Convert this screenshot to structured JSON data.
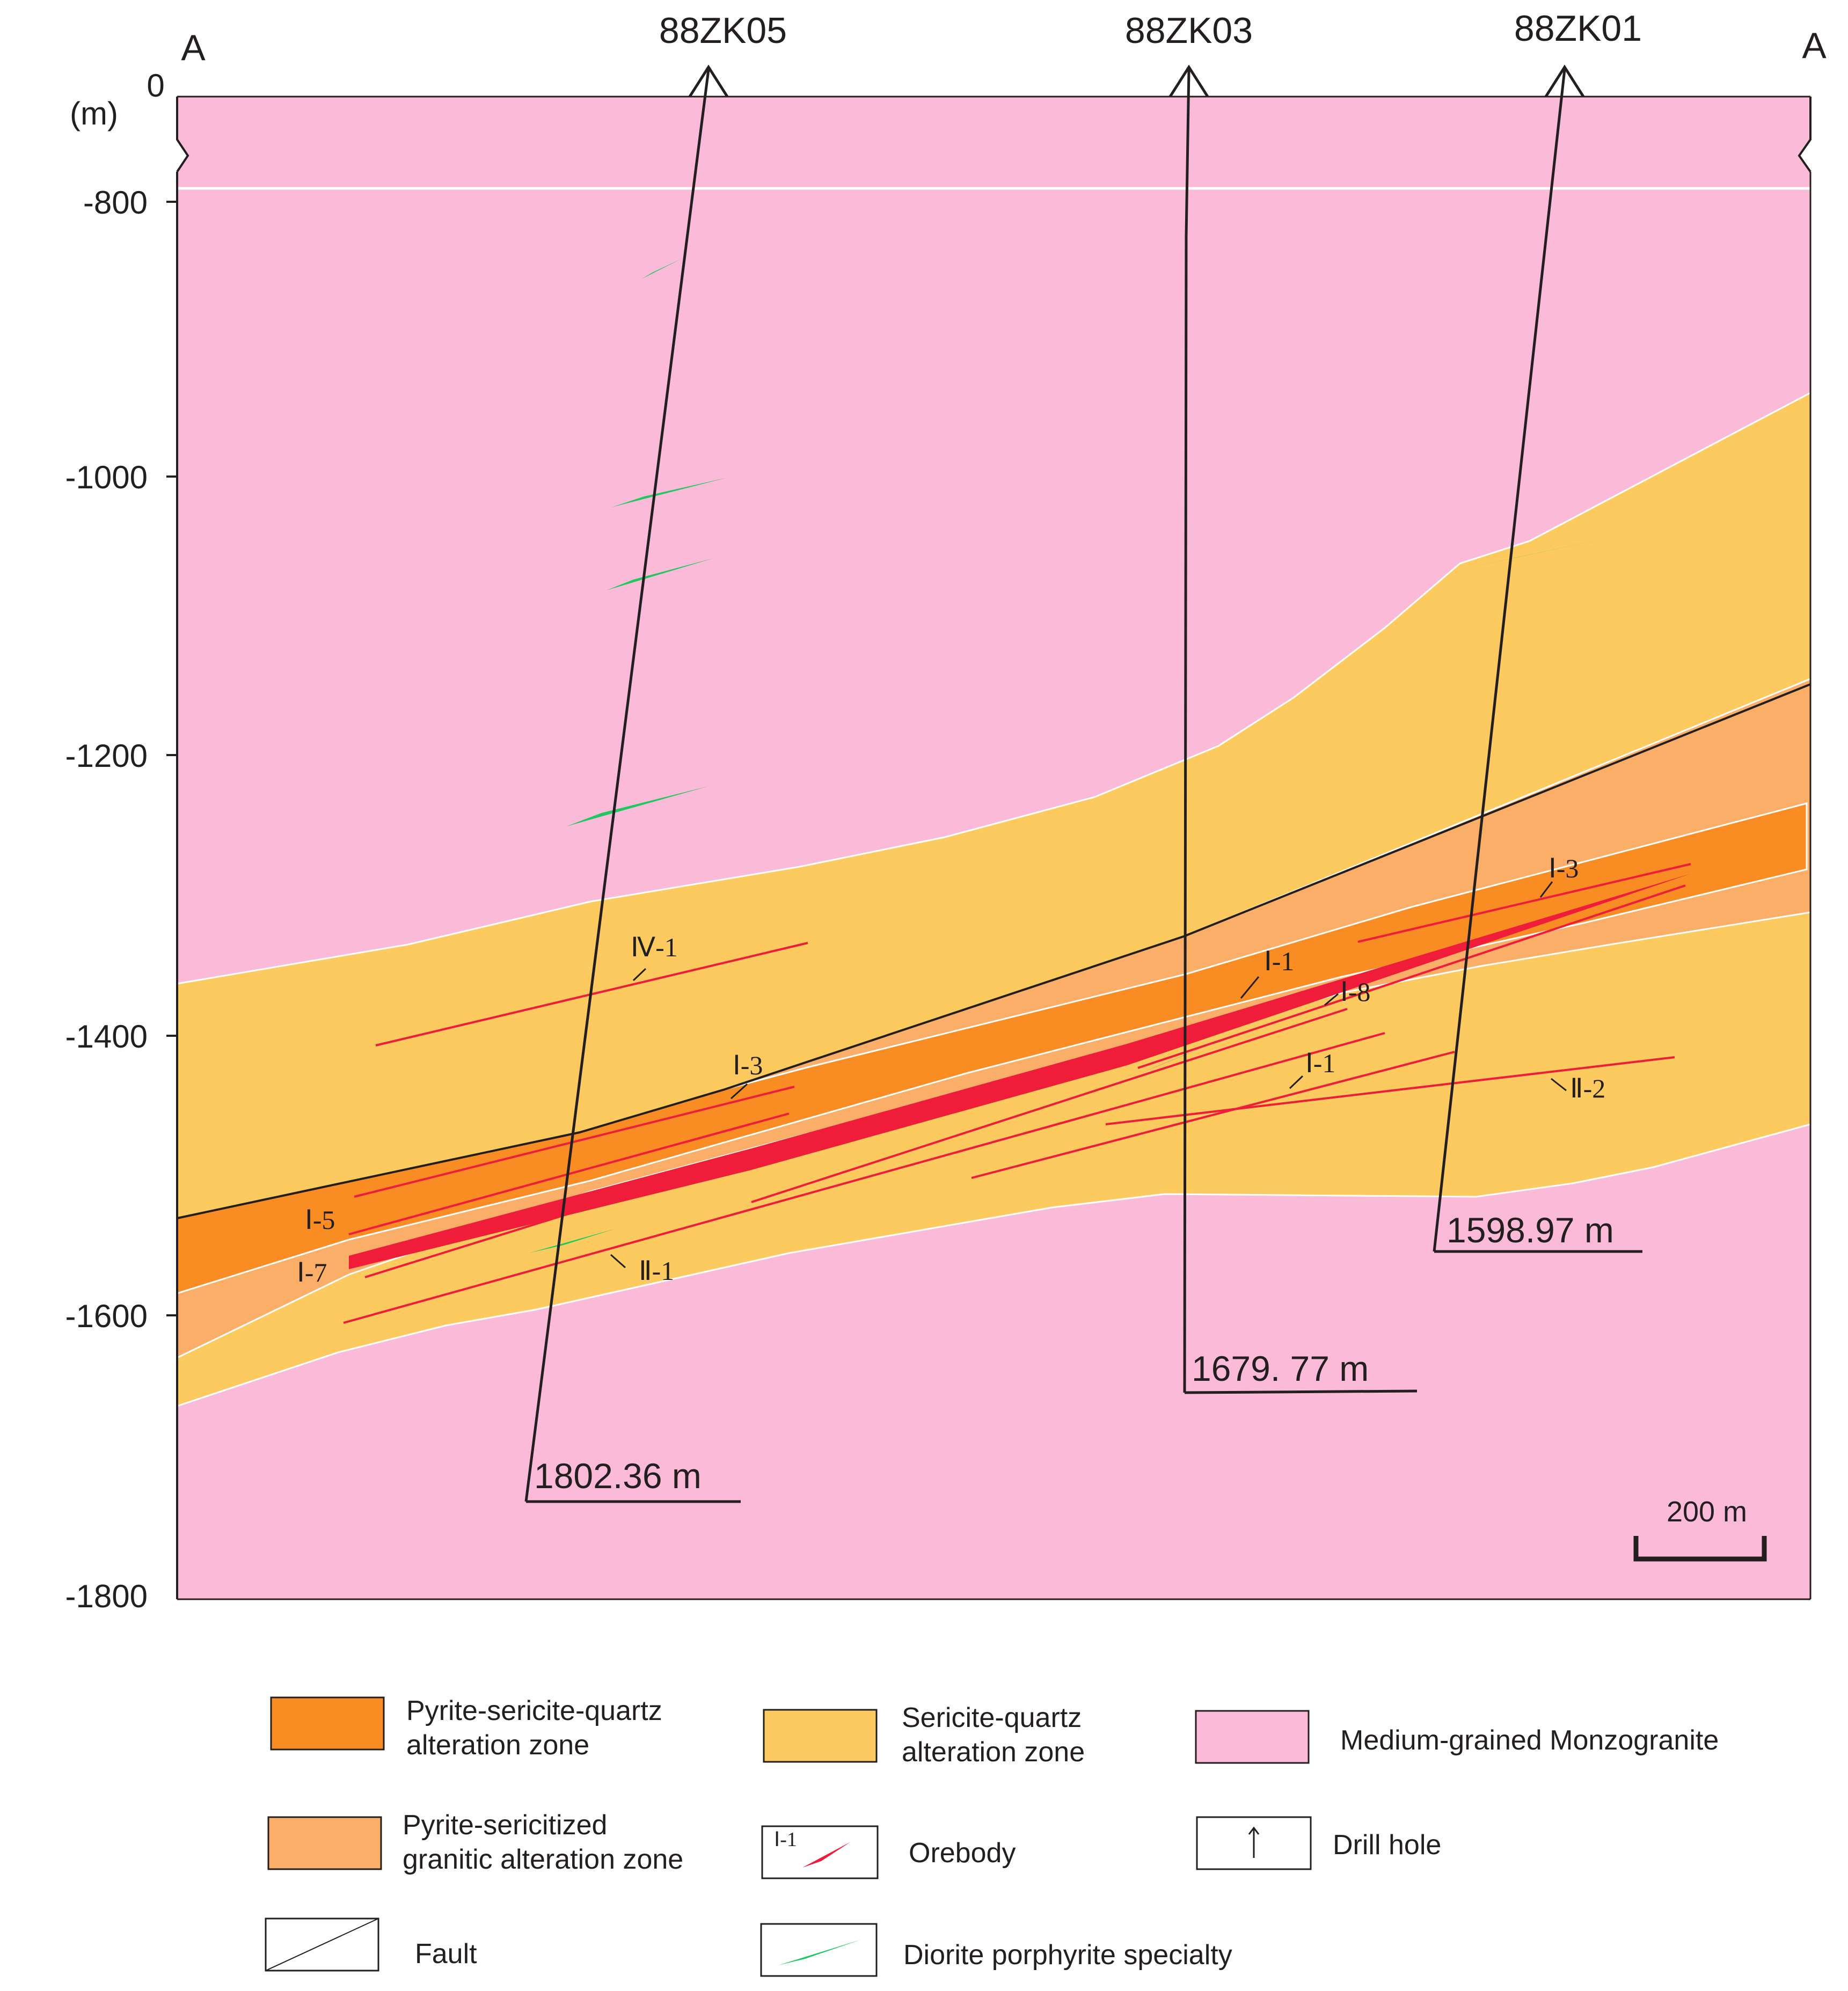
{
  "section": {
    "end_left": "A",
    "end_right": "A",
    "unit_label": "(m)",
    "top_label": "0",
    "depth_ticks": [
      "-800",
      "-1000",
      "-1200",
      "-1400",
      "-1600",
      "-1800"
    ],
    "scale_bar": "200 m"
  },
  "drill_holes": [
    {
      "name": "88ZK05",
      "final_depth": "1802.36 m"
    },
    {
      "name": "88ZK03",
      "final_depth": "1679. 77 m"
    },
    {
      "name": "88ZK01",
      "final_depth": "1598.97 m"
    }
  ],
  "orebodies": [
    "Ⅳ-1",
    "Ⅰ-3",
    "Ⅰ-5",
    "Ⅰ-7",
    "Ⅱ-1",
    "Ⅰ-1",
    "Ⅰ-8",
    "Ⅰ-1",
    "Ⅱ-2",
    "Ⅰ-3"
  ],
  "legend": {
    "pyrite_sericite_quartz": "Pyrite-sericite-quartz\nalteration zone",
    "sericite_quartz": "Sericite-quartz\nalteration zone",
    "monzogranite": "Medium-grained Monzogranite",
    "pyrite_sericitized": "Pyrite-sericitized\ngranitic alteration zone",
    "orebody": "Orebody",
    "orebody_sample": "Ⅰ-1",
    "drill_hole": "Drill hole",
    "fault": "Fault",
    "diorite": "Diorite porphyrite specialty"
  },
  "colors": {
    "monzogranite": "#fbbbd8",
    "sericite_quartz": "#fcca5f",
    "pyrite_sericitized": "#fbae68",
    "pyrite_sericite_quartz": "#f98d23",
    "orebody": "#ef1c3a",
    "diorite": "#1ec760",
    "dike_purple": "#8b6be0"
  }
}
